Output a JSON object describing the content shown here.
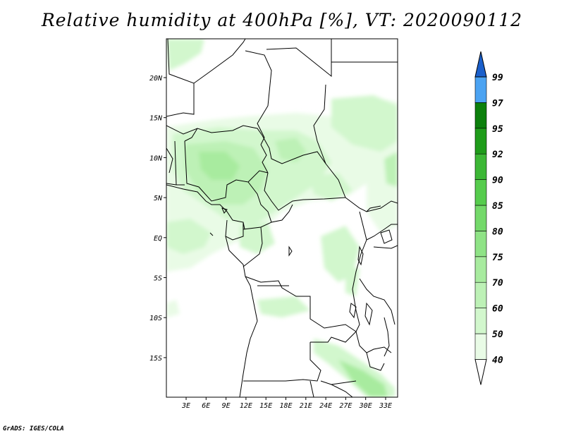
{
  "title": "Relative humidity at 400hPa [%], VT: 2020090112",
  "credit": "GrADS: IGES/COLA",
  "map": {
    "x_ticks": [
      "3E",
      "6E",
      "9E",
      "12E",
      "15E",
      "18E",
      "21E",
      "24E",
      "27E",
      "30E",
      "33E"
    ],
    "y_ticks": [
      "20N",
      "15N",
      "10N",
      "5N",
      "EQ",
      "5S",
      "10S",
      "15S"
    ]
  },
  "colorbar": {
    "levels": [
      "40",
      "50",
      "60",
      "70",
      "75",
      "80",
      "85",
      "90",
      "92",
      "95",
      "97",
      "99"
    ],
    "colors": [
      "#ffffff",
      "#e9fbe6",
      "#d2f7cd",
      "#bdf1b6",
      "#a8eb9f",
      "#8fe386",
      "#74d96a",
      "#56cc4d",
      "#3cb735",
      "#1f9c1a",
      "#0c800c",
      "#4ba3f2",
      "#2d7fe0",
      "#1a5fcb"
    ]
  }
}
